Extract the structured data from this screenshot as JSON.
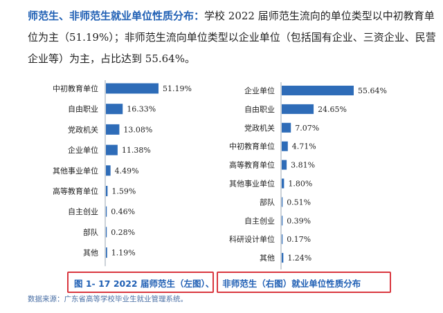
{
  "intro": {
    "lead": "师范生、非师范生就业单位性质分布：",
    "text": "学校 2022 届师范生流向的单位类型以中初教育单位为主（51.19%）；非师范生流向单位类型以企业单位（包括国有企业、三资企业、民营企业等）为主，占比达到 55.64%。"
  },
  "chart_data": [
    {
      "type": "bar",
      "orientation": "horizontal",
      "categories": [
        "中初教育单位",
        "自由职业",
        "党政机关",
        "企业单位",
        "其他事业单位",
        "高等教育单位",
        "自主创业",
        "部队",
        "其他"
      ],
      "values": [
        51.19,
        16.33,
        13.08,
        11.38,
        4.49,
        1.59,
        0.46,
        0.28,
        1.19
      ],
      "value_labels": [
        "51.19%",
        "16.33%",
        "13.08%",
        "11.38%",
        "4.49%",
        "1.59%",
        "0.46%",
        "0.28%",
        "1.19%"
      ],
      "bar_color": "#2e6cb8"
    },
    {
      "type": "bar",
      "orientation": "horizontal",
      "categories": [
        "企业单位",
        "自由职业",
        "党政机关",
        "中初教育单位",
        "高等教育单位",
        "其他事业单位",
        "部队",
        "自主创业",
        "科研设计单位",
        "其他"
      ],
      "values": [
        55.64,
        24.65,
        7.07,
        4.71,
        3.81,
        1.8,
        0.51,
        0.39,
        0.17,
        1.24
      ],
      "value_labels": [
        "55.64%",
        "24.65%",
        "7.07%",
        "4.71%",
        "3.81%",
        "1.80%",
        "0.51%",
        "0.39%",
        "0.17%",
        "1.24%"
      ],
      "bar_color": "#2e6cb8"
    }
  ],
  "caption": {
    "part1": "图 1- 17  2022 届师范生（左图）、",
    "part2": "非师范生（右图）就业单位性质分布"
  },
  "source": "数据来源：广东省高等学校毕业生就业管理系统。"
}
